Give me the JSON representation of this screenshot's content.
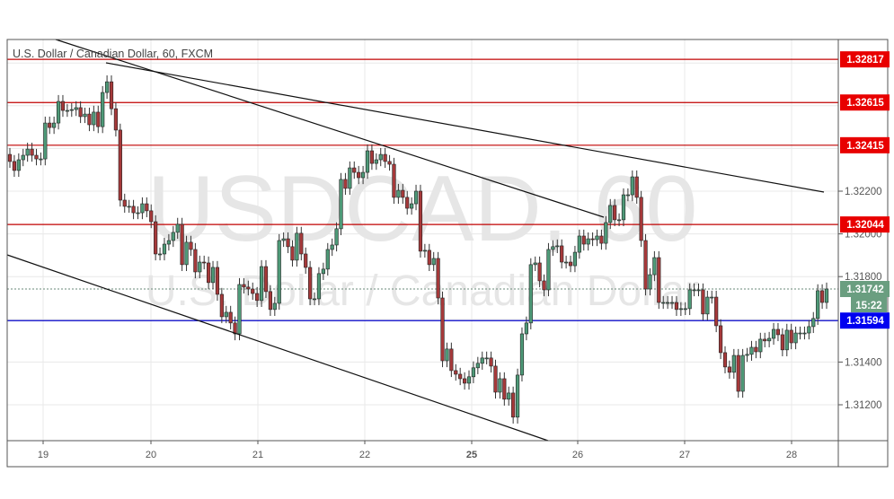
{
  "chart_data": {
    "type": "candlestick",
    "title": "U.S. Dollar / Canadian Dollar, 60, FXCM",
    "watermark": {
      "symbol": "USDCAD, 60",
      "description": "U.S. Dollar / Canadian Dollar"
    },
    "ylim": [
      1.3104,
      1.3298
    ],
    "y_ticks": [
      "1.31200",
      "1.31400",
      "1.31800",
      "1.32000",
      "1.32200"
    ],
    "y_tick_values": [
      1.312,
      1.314,
      1.318,
      1.32,
      1.322
    ],
    "grid_values": [
      1.312,
      1.314,
      1.316,
      1.318,
      1.32,
      1.322,
      1.324,
      1.326,
      1.328
    ],
    "x_ticks": [
      "19",
      "20",
      "21",
      "22",
      "25",
      "26",
      "27",
      "28"
    ],
    "grid": true,
    "first_open": 1.32372,
    "closes": [
      1.32339,
      1.32297,
      1.32347,
      1.32368,
      1.32397,
      1.32368,
      1.32351,
      1.32351,
      1.32519,
      1.32498,
      1.32519,
      1.3262,
      1.32578,
      1.32578,
      1.32582,
      1.32591,
      1.32549,
      1.32561,
      1.32511,
      1.3257,
      1.32502,
      1.32662,
      1.32712,
      1.32586,
      1.32486,
      1.32158,
      1.32129,
      1.32129,
      1.32099,
      1.32099,
      1.32141,
      1.32108,
      1.32057,
      1.31906,
      1.31906,
      1.31952,
      1.31969,
      1.32007,
      1.32045,
      1.31856,
      1.31961,
      1.31927,
      1.31822,
      1.31868,
      1.31864,
      1.31772,
      1.31843,
      1.31717,
      1.31612,
      1.31633,
      1.31583,
      1.31532,
      1.31763,
      1.31751,
      1.31742,
      1.31721,
      1.31688,
      1.31847,
      1.3173,
      1.31646,
      1.31675,
      1.31969,
      1.31977,
      1.3194,
      1.31877,
      1.32003,
      1.31906,
      1.31843,
      1.31696,
      1.31696,
      1.31814,
      1.31835,
      1.31927,
      1.31948,
      1.32024,
      1.32255,
      1.32213,
      1.32309,
      1.32288,
      1.32263,
      1.32288,
      1.32389,
      1.3233,
      1.32347,
      1.32372,
      1.32339,
      1.32326,
      1.32171,
      1.32204,
      1.32171,
      1.3212,
      1.32141,
      1.322,
      1.31919,
      1.31923,
      1.31856,
      1.31885,
      1.317,
      1.31406,
      1.31461,
      1.3136,
      1.31343,
      1.31322,
      1.31301,
      1.31331,
      1.31373,
      1.31394,
      1.31419,
      1.31419,
      1.31381,
      1.31259,
      1.31322,
      1.31226,
      1.31255,
      1.31142,
      1.31339,
      1.31532,
      1.31583,
      1.31856,
      1.31864,
      1.3178,
      1.31738,
      1.31927,
      1.3194,
      1.31944,
      1.31868,
      1.31868,
      1.31851,
      1.31914,
      1.3199,
      1.31952,
      1.31977,
      1.31973,
      1.3199,
      1.31956,
      1.32053,
      1.32133,
      1.32066,
      1.32066,
      1.32183,
      1.32183,
      1.32267,
      1.32171,
      1.31969,
      1.31742,
      1.31809,
      1.31889,
      1.31679,
      1.31679,
      1.31679,
      1.31679,
      1.31646,
      1.3165,
      1.3165,
      1.31738,
      1.31738,
      1.31738,
      1.31625,
      1.31704,
      1.31704,
      1.3157,
      1.31444,
      1.31377,
      1.31352,
      1.31431,
      1.31263,
      1.31431,
      1.31436,
      1.31469,
      1.31448,
      1.31507,
      1.31499,
      1.31511,
      1.31553,
      1.31528,
      1.31457,
      1.31549,
      1.3149,
      1.31536,
      1.31536,
      1.31536,
      1.31566,
      1.31604,
      1.31734,
      1.31679,
      1.31742
    ],
    "wick": 0.0003,
    "resistance_levels": [
      {
        "label": "1.32817",
        "value": 1.32817
      },
      {
        "label": "1.32615",
        "value": 1.32615
      },
      {
        "label": "1.32415",
        "value": 1.32415
      },
      {
        "label": "1.32044",
        "value": 1.32044
      }
    ],
    "support_level": {
      "label": "1.31594",
      "value": 1.31594
    },
    "current_price": {
      "label": "1.31742",
      "value": 1.31742,
      "countdown": "15:22"
    },
    "colors": {
      "up": "#4e9a78",
      "down": "#a6393a",
      "resistance": "#c00000",
      "resistance_label": "#e80000",
      "support": "#0000c8",
      "support_label": "#0000f0",
      "current": "#6a9e80"
    }
  }
}
